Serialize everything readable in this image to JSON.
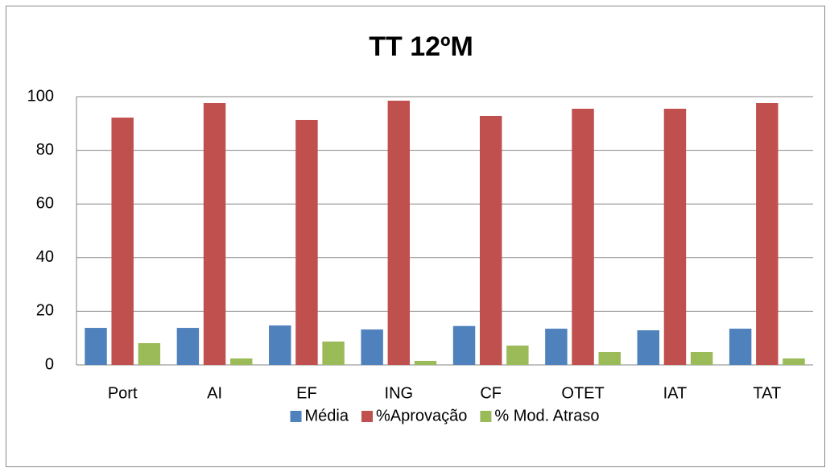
{
  "chart_data": {
    "type": "bar",
    "title": "TT 12ºM",
    "categories": [
      "Port",
      "AI",
      "EF",
      "ING",
      "CF",
      "OTET",
      "IAT",
      "TAT"
    ],
    "series": [
      {
        "name": "Média",
        "color": "#4f81bd",
        "values": [
          13.8,
          13.8,
          14.7,
          13.2,
          14.5,
          13.5,
          12.9,
          13.5
        ]
      },
      {
        "name": "%Aprovação",
        "color": "#c0504d",
        "values": [
          92.2,
          97.6,
          91.3,
          98.5,
          92.8,
          95.5,
          95.5,
          97.6
        ]
      },
      {
        "name": "% Mod. Atraso",
        "color": "#9bbb59",
        "values": [
          8.1,
          2.4,
          8.7,
          1.5,
          7.2,
          4.8,
          4.8,
          2.4
        ]
      }
    ],
    "ylim": [
      0,
      100
    ],
    "yticks": [
      0,
      20,
      40,
      60,
      80,
      100
    ],
    "grid": true,
    "legend": "bottom"
  }
}
